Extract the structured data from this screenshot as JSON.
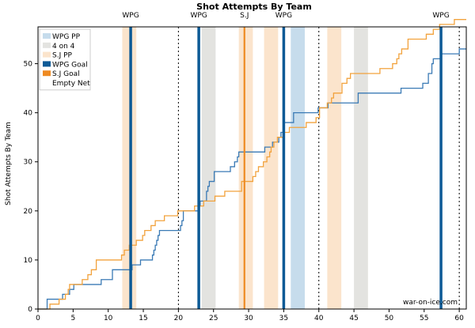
{
  "chart_data": {
    "type": "line",
    "title": "Shot Attempts By Team",
    "ylabel": "Shot Attempts By Team",
    "xlabel": "",
    "xlim": [
      0,
      61
    ],
    "ylim": [
      0,
      57.5
    ],
    "x_ticks": [
      0,
      5,
      10,
      15,
      20,
      25,
      30,
      35,
      40,
      45,
      50,
      55,
      60
    ],
    "y_ticks": [
      0,
      10,
      20,
      30,
      40,
      50
    ],
    "grid": false,
    "legend_position": "top-left",
    "watermark": "war-on-ice.com",
    "colors": {
      "wpg_line": "#3a7ab5",
      "sj_line": "#f2a23c",
      "wpg_goal": "#0d5a96",
      "sj_goal": "#ee8a22",
      "wpg_pp": "#c6dcec",
      "four_on_four": "#e3e3e0",
      "sj_pp": "#fbe4cc",
      "empty_net": "#000000"
    },
    "legend": [
      {
        "label": "WPG PP",
        "kind": "wpg_pp"
      },
      {
        "label": "4 on 4",
        "kind": "four_on_four"
      },
      {
        "label": "S.J PP",
        "kind": "sj_pp"
      },
      {
        "label": "WPG Goal",
        "kind": "wpg_goal"
      },
      {
        "label": "S.J Goal",
        "kind": "sj_goal"
      },
      {
        "label": "Empty Net",
        "kind": "empty_net"
      }
    ],
    "shaded_periods": [
      {
        "kind": "sj_pp",
        "x0": 12.0,
        "x1": 14.0
      },
      {
        "kind": "four_on_four",
        "x0": 23.3,
        "x1": 25.3
      },
      {
        "kind": "sj_pp",
        "x0": 28.6,
        "x1": 30.6
      },
      {
        "kind": "sj_pp",
        "x0": 32.2,
        "x1": 34.2
      },
      {
        "kind": "wpg_pp",
        "x0": 36.0,
        "x1": 38.0
      },
      {
        "kind": "sj_pp",
        "x0": 41.2,
        "x1": 43.2
      },
      {
        "kind": "four_on_four",
        "x0": 45.0,
        "x1": 47.0
      }
    ],
    "goals": [
      {
        "team": "WPG",
        "x": 13.2
      },
      {
        "team": "WPG",
        "x": 22.9
      },
      {
        "team": "S.J",
        "x": 29.4
      },
      {
        "team": "WPG",
        "x": 35.0
      },
      {
        "team": "WPG",
        "x": 57.4
      }
    ],
    "dashed_lines": [
      20,
      40,
      60
    ],
    "series": [
      {
        "name": "WPG",
        "x": [
          0,
          1.3,
          2.5,
          3.5,
          4.5,
          5.1,
          9.0,
          10.6,
          13.4,
          14.6,
          16.3,
          16.5,
          16.7,
          16.9,
          17.1,
          17.3,
          17.7,
          18.3,
          18.7,
          20.3,
          20.5,
          20.7,
          21.3,
          22.9,
          23.1,
          23.6,
          24.0,
          24.2,
          24.4,
          24.7,
          25.1,
          27.1,
          27.4,
          28.0,
          28.4,
          28.6,
          29.4,
          30.2,
          31.1,
          32.3,
          33.4,
          33.8,
          34.3,
          34.6,
          35.0,
          35.3,
          36.1,
          36.4,
          38.7,
          39.9,
          41.3,
          45.6,
          51.7,
          54.8,
          55.6,
          56.1,
          56.3,
          57.4,
          60.0
        ],
        "y": [
          0,
          2,
          2,
          3,
          4,
          5,
          6,
          8,
          9,
          10,
          11,
          12,
          13,
          14,
          15,
          16,
          16,
          16,
          16,
          17,
          18,
          20,
          20,
          21,
          22,
          22,
          24,
          25,
          26,
          26,
          28,
          28,
          29,
          30,
          31,
          32,
          32,
          32,
          32,
          33,
          34,
          34,
          35,
          36,
          38,
          38,
          38,
          40,
          40,
          41,
          42,
          44,
          45,
          46,
          48,
          50,
          51,
          52,
          53
        ],
        "final_x": 61
      },
      {
        "name": "S.J",
        "x": [
          0,
          1.7,
          2.3,
          3.0,
          3.9,
          4.3,
          4.5,
          6.3,
          7.1,
          7.6,
          8.3,
          11.9,
          12.3,
          12.6,
          13.0,
          14.0,
          14.9,
          15.2,
          15.6,
          16.1,
          16.7,
          18.0,
          18.4,
          19.9,
          21.0,
          22.3,
          23.6,
          25.2,
          26.6,
          29.0,
          29.4,
          30.6,
          31.0,
          31.4,
          32.1,
          32.6,
          33.0,
          33.2,
          33.6,
          34.1,
          34.4,
          35.0,
          35.8,
          38.2,
          39.6,
          40.1,
          40.5,
          41.2,
          41.4,
          41.8,
          42.1,
          42.4,
          43.3,
          44.0,
          44.5,
          48.7,
          50.5,
          51.1,
          51.4,
          51.8,
          52.7,
          53.1,
          55.3,
          56.3,
          57.2,
          57.8,
          59.3
        ],
        "y": [
          0,
          1,
          1,
          2,
          3,
          4,
          5,
          6,
          7,
          8,
          10,
          11,
          12,
          12,
          13,
          14,
          15,
          16,
          16,
          17,
          18,
          19,
          19,
          20,
          20,
          21,
          22,
          23,
          24,
          26,
          26,
          27,
          28,
          29,
          30,
          31,
          32,
          33,
          34,
          35,
          35,
          36,
          37,
          38,
          39,
          41,
          41,
          42,
          42,
          43,
          44,
          44,
          46,
          47,
          48,
          49,
          50,
          51,
          52,
          53,
          55,
          55,
          56,
          57,
          58,
          58,
          59
        ],
        "final_x": 61
      }
    ]
  }
}
